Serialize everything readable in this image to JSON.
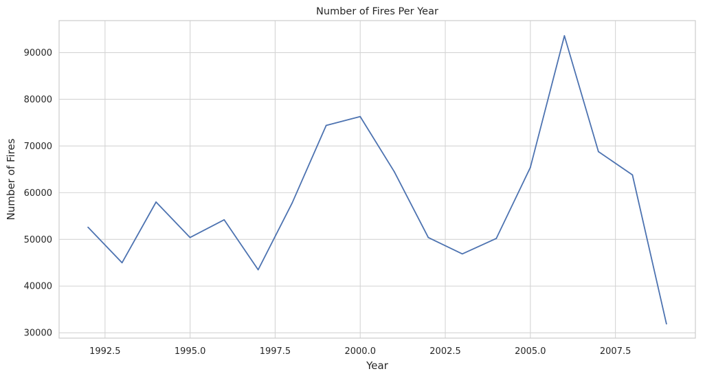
{
  "chart_data": {
    "type": "line",
    "title": "Number of Fires Per Year",
    "xlabel": "Year",
    "ylabel": "Number of Fires",
    "xlim": [
      1991.15,
      2009.85
    ],
    "ylim": [
      28850,
      96850
    ],
    "grid": true,
    "legend": "none",
    "colors": {
      "line": "#4c72b0",
      "grid": "#d4d4d4",
      "frame": "#cccccc",
      "text": "#262626"
    },
    "x_ticks": [
      1992.5,
      1995.0,
      1997.5,
      2000.0,
      2002.5,
      2005.0,
      2007.5
    ],
    "x_tick_labels": [
      "1992.5",
      "1995.0",
      "1997.5",
      "2000.0",
      "2002.5",
      "2005.0",
      "2007.5"
    ],
    "y_ticks": [
      30000,
      40000,
      50000,
      60000,
      70000,
      80000,
      90000
    ],
    "y_tick_labels": [
      "30000",
      "40000",
      "50000",
      "60000",
      "70000",
      "80000",
      "90000"
    ],
    "series": [
      {
        "x": [
          1992,
          1993,
          1994,
          1995,
          1996,
          1997,
          1998,
          1999,
          2000,
          2001,
          2002,
          2003,
          2004,
          2005,
          2006,
          2007,
          2008,
          2009
        ],
        "values": [
          52600,
          45000,
          58000,
          50400,
          54200,
          43500,
          57800,
          74400,
          76300,
          64500,
          50400,
          46900,
          50200,
          65400,
          93600,
          68800,
          63800,
          31900
        ]
      }
    ]
  }
}
